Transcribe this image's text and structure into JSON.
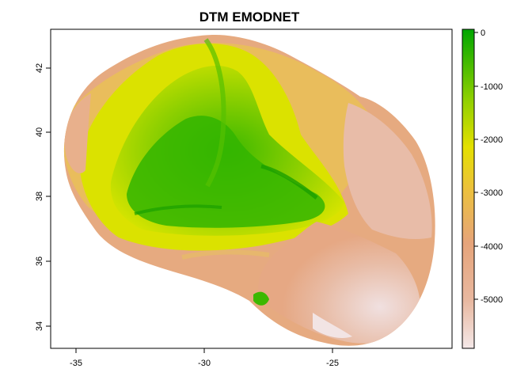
{
  "title": "DTM EMODNET",
  "x_ticks": [
    "-35",
    "-30",
    "-25"
  ],
  "y_ticks": [
    "34",
    "36",
    "38",
    "40",
    "42"
  ],
  "legend_ticks": [
    "0",
    "-1000",
    "-2000",
    "-3000",
    "-4000",
    "-5000"
  ],
  "colors": {
    "deep": "#f4e8e8",
    "mid_deep": "#e6a47a",
    "mid": "#edc13a",
    "shallow_mid": "#c8e000",
    "shallow": "#00a600"
  },
  "chart_data": {
    "type": "heatmap",
    "title": "DTM EMODNET",
    "xlim": [
      -36,
      -20.3
    ],
    "ylim": [
      33.4,
      43.2
    ],
    "x_ticks": [
      -35,
      -30,
      -25
    ],
    "y_ticks": [
      34,
      36,
      38,
      40,
      42
    ],
    "color_scale": {
      "range": [
        -5900,
        100
      ],
      "ticks": [
        0,
        -1000,
        -2000,
        -3000,
        -4000,
        -5000
      ],
      "palette": "terrain"
    },
    "grid": false,
    "legend_placement": "right"
  }
}
